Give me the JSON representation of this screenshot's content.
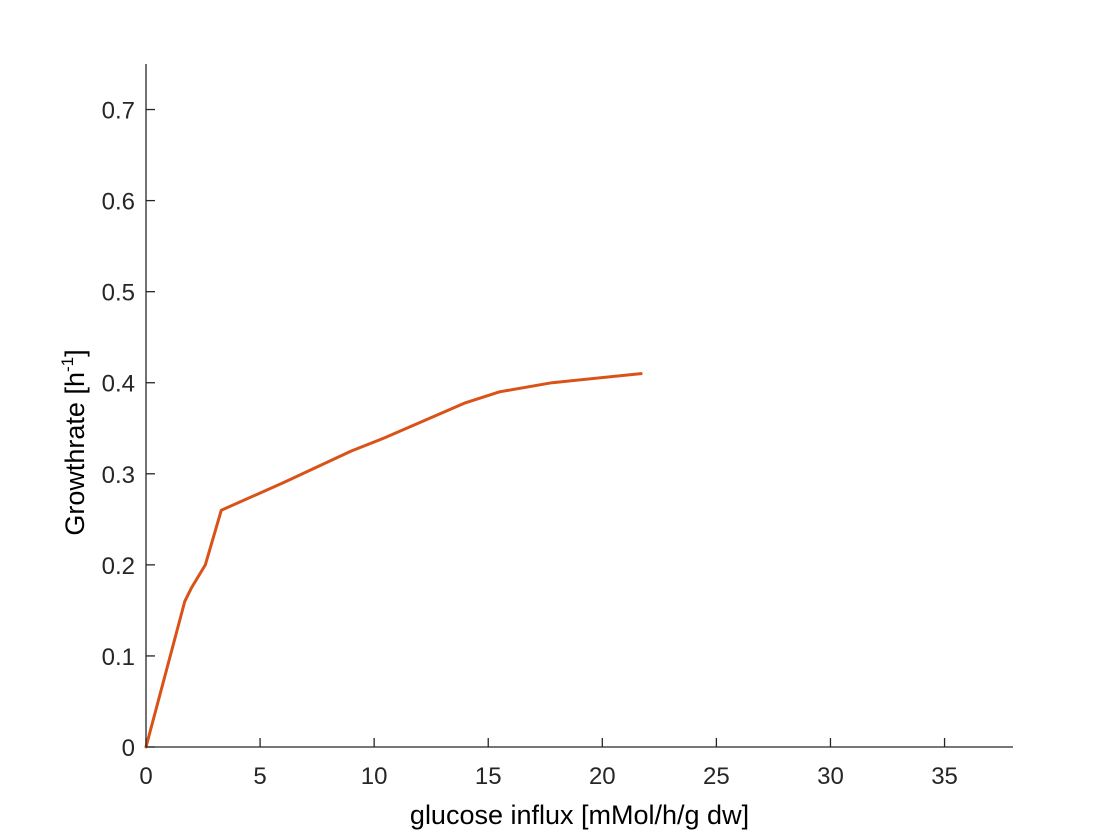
{
  "chart_data": {
    "type": "line",
    "title": "",
    "xlabel": "glucose influx [mMol/h/g dw]",
    "ylabel": {
      "base": "Growthrate [h",
      "superscript": "-1",
      "suffix": "]"
    },
    "xlim": [
      0,
      38
    ],
    "ylim": [
      0,
      0.75
    ],
    "x_ticks": [
      0,
      5,
      10,
      15,
      20,
      25,
      30,
      35
    ],
    "x_tick_labels": [
      "0",
      "5",
      "10",
      "15",
      "20",
      "25",
      "30",
      "35"
    ],
    "y_ticks": [
      0,
      0.1,
      0.2,
      0.3,
      0.4,
      0.5,
      0.6,
      0.7
    ],
    "y_tick_labels": [
      "0",
      "0.1",
      "0.2",
      "0.3",
      "0.4",
      "0.5",
      "0.6",
      "0.7"
    ],
    "grid": false,
    "series": [
      {
        "color": "#d95319",
        "x": [
          0,
          1.7,
          2.0,
          2.6,
          3.3,
          6.0,
          9.0,
          10.5,
          14.0,
          15.5,
          17.8,
          21.7
        ],
        "y": [
          0,
          0.16,
          0.175,
          0.2,
          0.26,
          0.29,
          0.325,
          0.34,
          0.378,
          0.39,
          0.4,
          0.41
        ]
      }
    ]
  }
}
